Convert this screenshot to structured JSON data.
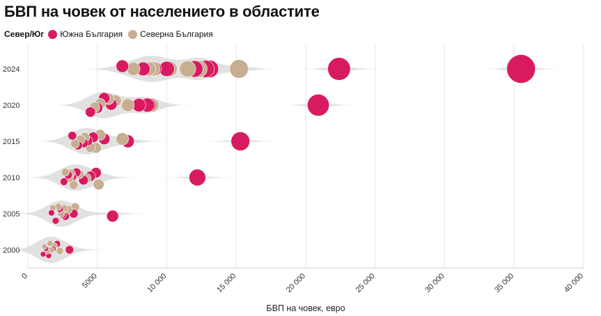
{
  "title": "БВП на човек от населението в областите",
  "legend": {
    "title": "Север/Юг",
    "items": [
      {
        "label": "Южна България",
        "color": "#d81b60"
      },
      {
        "label": "Северна България",
        "color": "#c8ae91"
      }
    ]
  },
  "chart_data": {
    "type": "scatter",
    "xlabel": "БВП на човек, евро",
    "xlim": [
      0,
      40000
    ],
    "xticks": [
      0,
      5000,
      10000,
      15000,
      20000,
      25000,
      30000,
      35000,
      40000
    ],
    "xtick_labels": [
      "0",
      "5000",
      "10 000",
      "15 000",
      "20 000",
      "25 000",
      "30 000",
      "35 000",
      "40 000"
    ],
    "categories": [
      "2000",
      "2005",
      "2010",
      "2015",
      "2020",
      "2024"
    ],
    "grid": "vertical",
    "legend_position": "top-left",
    "size_note": "bubble area proportional to value",
    "series": [
      {
        "name": "Южна България",
        "color": "#d81b60",
        "points": [
          {
            "year": "2000",
            "x": 1100
          },
          {
            "year": "2000",
            "x": 1300
          },
          {
            "year": "2000",
            "x": 1500
          },
          {
            "year": "2000",
            "x": 1800
          },
          {
            "year": "2000",
            "x": 2100
          },
          {
            "year": "2000",
            "x": 3000
          },
          {
            "year": "2005",
            "x": 1700
          },
          {
            "year": "2005",
            "x": 2000
          },
          {
            "year": "2005",
            "x": 2300
          },
          {
            "year": "2005",
            "x": 2500
          },
          {
            "year": "2005",
            "x": 2700
          },
          {
            "year": "2005",
            "x": 3300
          },
          {
            "year": "2005",
            "x": 6100
          },
          {
            "year": "2010",
            "x": 2600
          },
          {
            "year": "2010",
            "x": 2900
          },
          {
            "year": "2010",
            "x": 3200
          },
          {
            "year": "2010",
            "x": 3500
          },
          {
            "year": "2010",
            "x": 4000
          },
          {
            "year": "2010",
            "x": 4500
          },
          {
            "year": "2010",
            "x": 4900
          },
          {
            "year": "2010",
            "x": 12200
          },
          {
            "year": "2015",
            "x": 3200
          },
          {
            "year": "2015",
            "x": 3600
          },
          {
            "year": "2015",
            "x": 4000
          },
          {
            "year": "2015",
            "x": 4300
          },
          {
            "year": "2015",
            "x": 4700
          },
          {
            "year": "2015",
            "x": 5500
          },
          {
            "year": "2015",
            "x": 7200
          },
          {
            "year": "2015",
            "x": 15300
          },
          {
            "year": "2020",
            "x": 4500
          },
          {
            "year": "2020",
            "x": 5000
          },
          {
            "year": "2020",
            "x": 5500
          },
          {
            "year": "2020",
            "x": 6000
          },
          {
            "year": "2020",
            "x": 8000
          },
          {
            "year": "2020",
            "x": 8600
          },
          {
            "year": "2020",
            "x": 8700
          },
          {
            "year": "2020",
            "x": 20900
          },
          {
            "year": "2024",
            "x": 6800
          },
          {
            "year": "2024",
            "x": 8300
          },
          {
            "year": "2024",
            "x": 9100
          },
          {
            "year": "2024",
            "x": 10000
          },
          {
            "year": "2024",
            "x": 12000
          },
          {
            "year": "2024",
            "x": 12800
          },
          {
            "year": "2024",
            "x": 13100
          },
          {
            "year": "2024",
            "x": 22400
          },
          {
            "year": "2024",
            "x": 35500
          }
        ]
      },
      {
        "name": "Северна България",
        "color": "#c8ae91",
        "points": [
          {
            "year": "2000",
            "x": 1200
          },
          {
            "year": "2000",
            "x": 1400
          },
          {
            "year": "2000",
            "x": 1600
          },
          {
            "year": "2000",
            "x": 1700
          },
          {
            "year": "2000",
            "x": 1900
          },
          {
            "year": "2000",
            "x": 2300
          },
          {
            "year": "2005",
            "x": 1800
          },
          {
            "year": "2005",
            "x": 2100
          },
          {
            "year": "2005",
            "x": 2200
          },
          {
            "year": "2005",
            "x": 2400
          },
          {
            "year": "2005",
            "x": 2600
          },
          {
            "year": "2005",
            "x": 2900
          },
          {
            "year": "2005",
            "x": 3400
          },
          {
            "year": "2010",
            "x": 2700
          },
          {
            "year": "2010",
            "x": 3000
          },
          {
            "year": "2010",
            "x": 3100
          },
          {
            "year": "2010",
            "x": 3300
          },
          {
            "year": "2010",
            "x": 3700
          },
          {
            "year": "2010",
            "x": 4200
          },
          {
            "year": "2010",
            "x": 5100
          },
          {
            "year": "2015",
            "x": 3400
          },
          {
            "year": "2015",
            "x": 3800
          },
          {
            "year": "2015",
            "x": 4100
          },
          {
            "year": "2015",
            "x": 4500
          },
          {
            "year": "2015",
            "x": 4900
          },
          {
            "year": "2015",
            "x": 5200
          },
          {
            "year": "2015",
            "x": 6800
          },
          {
            "year": "2020",
            "x": 4800
          },
          {
            "year": "2020",
            "x": 5200
          },
          {
            "year": "2020",
            "x": 5800
          },
          {
            "year": "2020",
            "x": 6300
          },
          {
            "year": "2020",
            "x": 7200
          },
          {
            "year": "2020",
            "x": 8900
          },
          {
            "year": "2024",
            "x": 7600
          },
          {
            "year": "2024",
            "x": 8700
          },
          {
            "year": "2024",
            "x": 9000
          },
          {
            "year": "2024",
            "x": 10200
          },
          {
            "year": "2024",
            "x": 11500
          },
          {
            "year": "2024",
            "x": 12300
          },
          {
            "year": "2024",
            "x": 15200
          }
        ]
      }
    ]
  }
}
